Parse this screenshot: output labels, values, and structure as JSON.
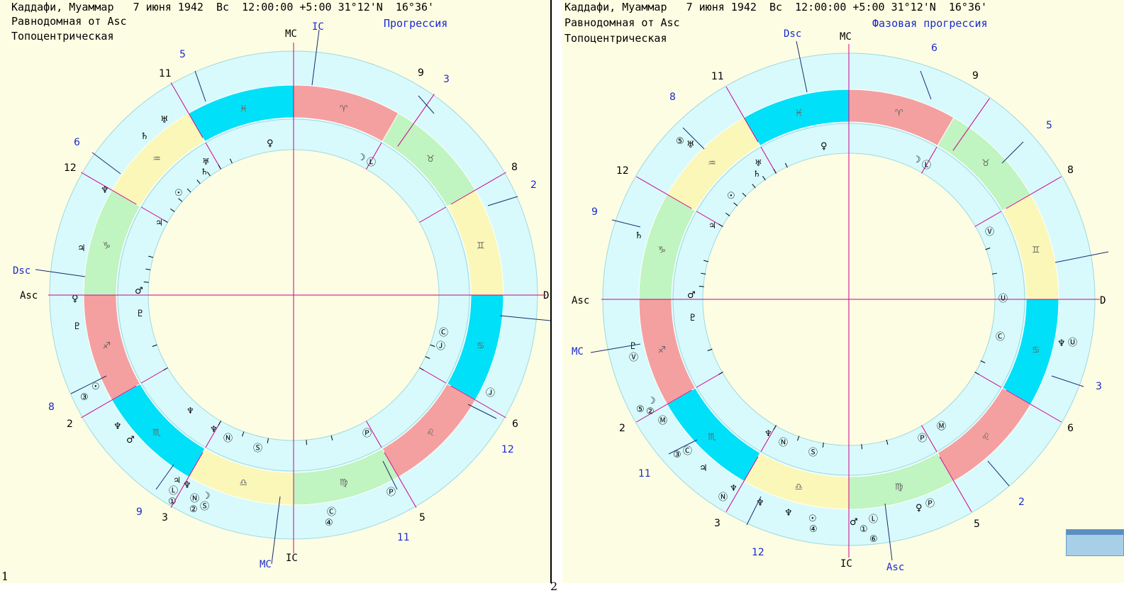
{
  "left": {
    "header_line1": "Каддафи, Муаммар   7 июня 1942  Вс  12:00:00 +5:00 31°12'N  16°36'",
    "header_line2": "Равнодомная от Asc",
    "header_line3": "Топоцентрическая",
    "mode_label": "Прогрессия",
    "corner_label": "1",
    "axis_labels": {
      "mc_top": "MC",
      "ic_top": "IC",
      "asc": "Asc",
      "dsc": "Dsc",
      "mc_bottom": "MC",
      "ic_bottom": "IC",
      "d_right": "D"
    },
    "outer_house_numbers": [
      "5",
      "3",
      "2",
      "12",
      "11",
      "8",
      "6"
    ],
    "inner_house_numbers": [
      "11",
      "9",
      "8",
      "6",
      "5",
      "3",
      "2",
      "12"
    ],
    "extra_house_numbers": [
      "9"
    ]
  },
  "right": {
    "header_line1": "Каддафи, Муаммар   7 июня 1942  Вс  12:00:00 +5:00 31°12'N  16°36'",
    "header_line2": "Равнодомная от Asc",
    "header_line3": "Топоцентрическая",
    "mode_label": "Фазовая прогрессия",
    "corner_label": "2",
    "axis_labels": {
      "dsc_top": "Dsc",
      "mc_top": "MC",
      "asc": "Asc",
      "mc_left": "MC",
      "ic_bottom": "IC",
      "asc_bottom": "Asc",
      "d_right": "D"
    },
    "outer_house_numbers": [
      "6",
      "5",
      "3",
      "2",
      "12",
      "11",
      "9",
      "8"
    ],
    "inner_house_numbers": [
      "11",
      "9",
      "8",
      "6",
      "5",
      "3",
      "2",
      "12"
    ]
  },
  "colors": {
    "fire": "#f4a0a0",
    "water": "#00e0f8",
    "earth": "#c0f4c0",
    "air": "#fbf7b8",
    "ring": "#d8fafc",
    "house_cusp": "#d0008c",
    "aspect_line": "#1a2a70",
    "label_blue": "#1a2ad0"
  },
  "zodiac_glyphs": [
    "♈",
    "♉",
    "♊",
    "♋",
    "♌",
    "♍",
    "♎",
    "♏",
    "♐",
    "♑",
    "♒",
    "♓"
  ],
  "left_inner_planets": [
    "♀",
    "☽",
    "Ⓛ",
    "♄",
    "♅",
    "☉",
    "♂",
    "♇",
    "Ⓒ",
    "Ⓙ",
    "Ⓟ",
    "Ⓝ",
    "Ⓢ",
    "♆",
    "♃",
    "♆"
  ],
  "left_outer_planets": [
    "♅",
    "♄",
    "♆",
    "♃",
    "♀",
    "♇",
    "③",
    "☉",
    "♆",
    "♂",
    "♃",
    "♆",
    "Ⓛ",
    "①",
    "Ⓝ",
    "②",
    "☽",
    "Ⓢ",
    "Ⓒ",
    "④",
    "Ⓟ",
    "Ⓙ"
  ],
  "right_inner_planets": [
    "♀",
    "☽",
    "Ⓛ",
    "♄",
    "♅",
    "☉",
    "♂",
    "♇",
    "Ⓥ",
    "Ⓤ",
    "Ⓒ",
    "Ⓜ",
    "Ⓟ",
    "Ⓝ",
    "Ⓢ",
    "♆",
    "♃"
  ],
  "right_outer_planets": [
    "⑤",
    "♅",
    "♄",
    "♇",
    "Ⓥ",
    "⑤",
    "②",
    "☽",
    "Ⓜ",
    "③",
    "Ⓒ",
    "♃",
    "Ⓝ",
    "♆",
    "♆",
    "♆",
    "☉",
    "④",
    "♂",
    "Ⓛ",
    "①",
    "⑥",
    "♀",
    "Ⓟ",
    "♆",
    "Ⓤ"
  ]
}
